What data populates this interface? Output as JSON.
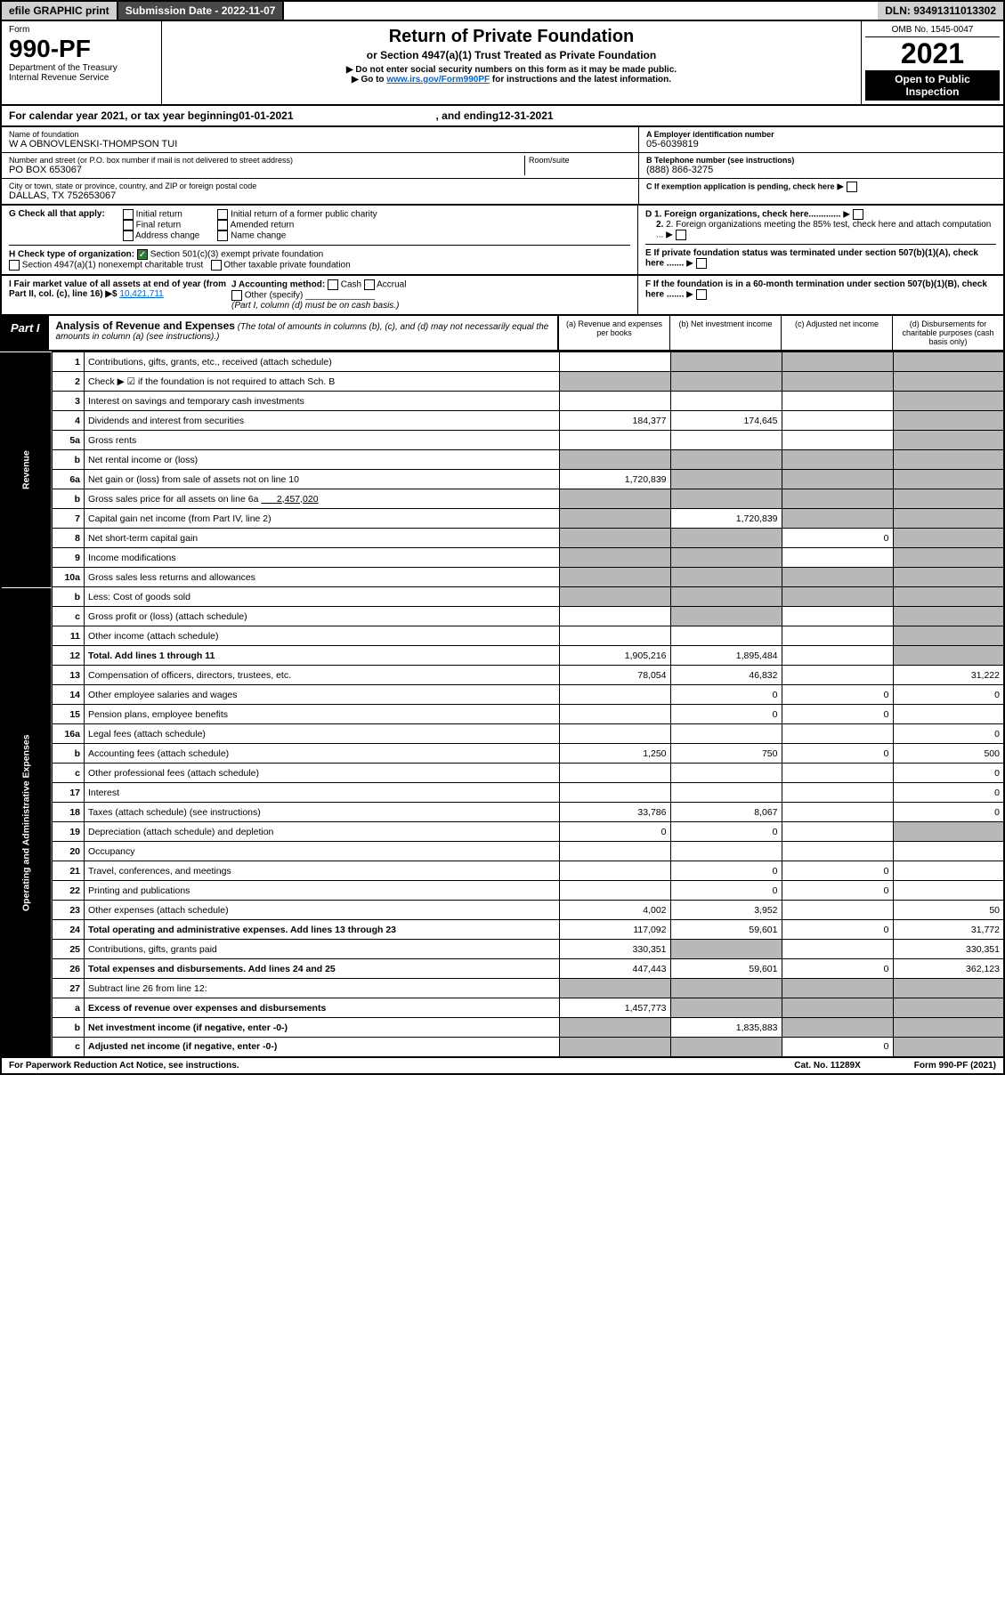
{
  "top": {
    "efile": "efile GRAPHIC print",
    "sub_date_label": "Submission Date - ",
    "sub_date": "2022-11-07",
    "dln_label": "DLN: ",
    "dln": "93491311013302"
  },
  "hdr": {
    "form": "Form",
    "num": "990-PF",
    "dept": "Department of the Treasury",
    "irs": "Internal Revenue Service",
    "title": "Return of Private Foundation",
    "sub": "or Section 4947(a)(1) Trust Treated as Private Foundation",
    "inst1": "▶ Do not enter social security numbers on this form as it may be made public.",
    "inst2": "▶ Go to ",
    "link": "www.irs.gov/Form990PF",
    "inst3": " for instructions and the latest information.",
    "omb": "OMB No. 1545-0047",
    "year": "2021",
    "open": "Open to Public Inspection"
  },
  "cal": {
    "t1": "For calendar year 2021, or tax year beginning ",
    "begin": "01-01-2021",
    "t2": ", and ending ",
    "end": "12-31-2021"
  },
  "id": {
    "name_lbl": "Name of foundation",
    "name": "W A OBNOVLENSKI-THOMPSON TUI",
    "addr_lbl": "Number and street (or P.O. box number if mail is not delivered to street address)",
    "addr": "PO BOX 653067",
    "room_lbl": "Room/suite",
    "city_lbl": "City or town, state or province, country, and ZIP or foreign postal code",
    "city": "DALLAS, TX  752653067",
    "ein_lbl": "A Employer identification number",
    "ein": "05-6039819",
    "tel_lbl": "B Telephone number (see instructions)",
    "tel": "(888) 866-3275",
    "c_lbl": "C If exemption application is pending, check here",
    "d1": "D 1. Foreign organizations, check here.............",
    "d2": "2. Foreign organizations meeting the 85% test, check here and attach computation ...",
    "e_lbl": "E  If private foundation status was terminated under section 507(b)(1)(A), check here .......",
    "f_lbl": "F  If the foundation is in a 60-month termination under section 507(b)(1)(B), check here ......."
  },
  "g": {
    "lbl": "G Check all that apply:",
    "o1": "Initial return",
    "o2": "Final return",
    "o3": "Address change",
    "o4": "Initial return of a former public charity",
    "o5": "Amended return",
    "o6": "Name change"
  },
  "h": {
    "lbl": "H Check type of organization:",
    "o1": "Section 501(c)(3) exempt private foundation",
    "o2": "Section 4947(a)(1) nonexempt charitable trust",
    "o3": "Other taxable private foundation"
  },
  "i": {
    "lbl": "I Fair market value of all assets at end of year (from Part II, col. (c), line 16) ▶$ ",
    "val": "10,421,711"
  },
  "j": {
    "lbl": "J Accounting method:",
    "o1": "Cash",
    "o2": "Accrual",
    "o3": "Other (specify)",
    "note": "(Part I, column (d) must be on cash basis.)"
  },
  "part1": {
    "lbl": "Part I",
    "title": "Analysis of Revenue and Expenses",
    "note": " (The total of amounts in columns (b), (c), and (d) may not necessarily equal the amounts in column (a) (see instructions).)",
    "ca": "(a)   Revenue and expenses per books",
    "cb": "(b)   Net investment income",
    "cc": "(c)  Adjusted net income",
    "cd": "(d)  Disbursements for charitable purposes (cash basis only)"
  },
  "rev_lbl": "Revenue",
  "exp_lbl": "Operating and Administrative Expenses",
  "rows": {
    "r1": {
      "n": "1",
      "d": "Contributions, gifts, grants, etc., received (attach schedule)",
      "a": "",
      "b": "g",
      "c": "g",
      "dd": "g"
    },
    "r2": {
      "n": "2",
      "d": "Check ▶ ☑ if the foundation is not required to attach Sch. B",
      "a": "g",
      "b": "g",
      "c": "g",
      "dd": "g"
    },
    "r3": {
      "n": "3",
      "d": "Interest on savings and temporary cash investments",
      "a": "",
      "b": "",
      "c": "",
      "dd": "g"
    },
    "r4": {
      "n": "4",
      "d": "Dividends and interest from securities",
      "a": "184,377",
      "b": "174,645",
      "c": "",
      "dd": "g"
    },
    "r5a": {
      "n": "5a",
      "d": "Gross rents",
      "a": "",
      "b": "",
      "c": "",
      "dd": "g"
    },
    "r5b": {
      "n": "b",
      "d": "Net rental income or (loss)",
      "a": "g",
      "b": "g",
      "c": "g",
      "dd": "g"
    },
    "r6a": {
      "n": "6a",
      "d": "Net gain or (loss) from sale of assets not on line 10",
      "a": "1,720,839",
      "b": "g",
      "c": "g",
      "dd": "g"
    },
    "r6b": {
      "n": "b",
      "d": "Gross sales price for all assets on line 6a",
      "v": "2,457,020",
      "a": "g",
      "b": "g",
      "c": "g",
      "dd": "g"
    },
    "r7": {
      "n": "7",
      "d": "Capital gain net income (from Part IV, line 2)",
      "a": "g",
      "b": "1,720,839",
      "c": "g",
      "dd": "g"
    },
    "r8": {
      "n": "8",
      "d": "Net short-term capital gain",
      "a": "g",
      "b": "g",
      "c": "0",
      "dd": "g"
    },
    "r9": {
      "n": "9",
      "d": "Income modifications",
      "a": "g",
      "b": "g",
      "c": "",
      "dd": "g"
    },
    "r10a": {
      "n": "10a",
      "d": "Gross sales less returns and allowances",
      "a": "g",
      "b": "g",
      "c": "g",
      "dd": "g"
    },
    "r10b": {
      "n": "b",
      "d": "Less: Cost of goods sold",
      "a": "g",
      "b": "g",
      "c": "g",
      "dd": "g"
    },
    "r10c": {
      "n": "c",
      "d": "Gross profit or (loss) (attach schedule)",
      "a": "",
      "b": "g",
      "c": "",
      "dd": "g"
    },
    "r11": {
      "n": "11",
      "d": "Other income (attach schedule)",
      "a": "",
      "b": "",
      "c": "",
      "dd": "g"
    },
    "r12": {
      "n": "12",
      "d": "Total. Add lines 1 through 11",
      "a": "1,905,216",
      "b": "1,895,484",
      "c": "",
      "dd": "g"
    },
    "r13": {
      "n": "13",
      "d": "Compensation of officers, directors, trustees, etc.",
      "a": "78,054",
      "b": "46,832",
      "c": "",
      "dd": "31,222"
    },
    "r14": {
      "n": "14",
      "d": "Other employee salaries and wages",
      "a": "",
      "b": "0",
      "c": "0",
      "dd": "0"
    },
    "r15": {
      "n": "15",
      "d": "Pension plans, employee benefits",
      "a": "",
      "b": "0",
      "c": "0",
      "dd": ""
    },
    "r16a": {
      "n": "16a",
      "d": "Legal fees (attach schedule)",
      "a": "",
      "b": "",
      "c": "",
      "dd": "0"
    },
    "r16b": {
      "n": "b",
      "d": "Accounting fees (attach schedule)",
      "a": "1,250",
      "b": "750",
      "c": "0",
      "dd": "500"
    },
    "r16c": {
      "n": "c",
      "d": "Other professional fees (attach schedule)",
      "a": "",
      "b": "",
      "c": "",
      "dd": "0"
    },
    "r17": {
      "n": "17",
      "d": "Interest",
      "a": "",
      "b": "",
      "c": "",
      "dd": "0"
    },
    "r18": {
      "n": "18",
      "d": "Taxes (attach schedule) (see instructions)",
      "a": "33,786",
      "b": "8,067",
      "c": "",
      "dd": "0"
    },
    "r19": {
      "n": "19",
      "d": "Depreciation (attach schedule) and depletion",
      "a": "0",
      "b": "0",
      "c": "",
      "dd": "g"
    },
    "r20": {
      "n": "20",
      "d": "Occupancy",
      "a": "",
      "b": "",
      "c": "",
      "dd": ""
    },
    "r21": {
      "n": "21",
      "d": "Travel, conferences, and meetings",
      "a": "",
      "b": "0",
      "c": "0",
      "dd": ""
    },
    "r22": {
      "n": "22",
      "d": "Printing and publications",
      "a": "",
      "b": "0",
      "c": "0",
      "dd": ""
    },
    "r23": {
      "n": "23",
      "d": "Other expenses (attach schedule)",
      "a": "4,002",
      "b": "3,952",
      "c": "",
      "dd": "50"
    },
    "r24": {
      "n": "24",
      "d": "Total operating and administrative expenses. Add lines 13 through 23",
      "a": "117,092",
      "b": "59,601",
      "c": "0",
      "dd": "31,772"
    },
    "r25": {
      "n": "25",
      "d": "Contributions, gifts, grants paid",
      "a": "330,351",
      "b": "g",
      "c": "",
      "dd": "330,351"
    },
    "r26": {
      "n": "26",
      "d": "Total expenses and disbursements. Add lines 24 and 25",
      "a": "447,443",
      "b": "59,601",
      "c": "0",
      "dd": "362,123"
    },
    "r27": {
      "n": "27",
      "d": "Subtract line 26 from line 12:",
      "a": "g",
      "b": "g",
      "c": "g",
      "dd": "g"
    },
    "r27a": {
      "n": "a",
      "d": "Excess of revenue over expenses and disbursements",
      "a": "1,457,773",
      "b": "g",
      "c": "g",
      "dd": "g"
    },
    "r27b": {
      "n": "b",
      "d": "Net investment income (if negative, enter -0-)",
      "a": "g",
      "b": "1,835,883",
      "c": "g",
      "dd": "g"
    },
    "r27c": {
      "n": "c",
      "d": "Adjusted net income (if negative, enter -0-)",
      "a": "g",
      "b": "g",
      "c": "0",
      "dd": "g"
    }
  },
  "ftr": {
    "l": "For Paperwork Reduction Act Notice, see instructions.",
    "c": "Cat. No. 11289X",
    "r": "Form 990-PF (2021)"
  }
}
